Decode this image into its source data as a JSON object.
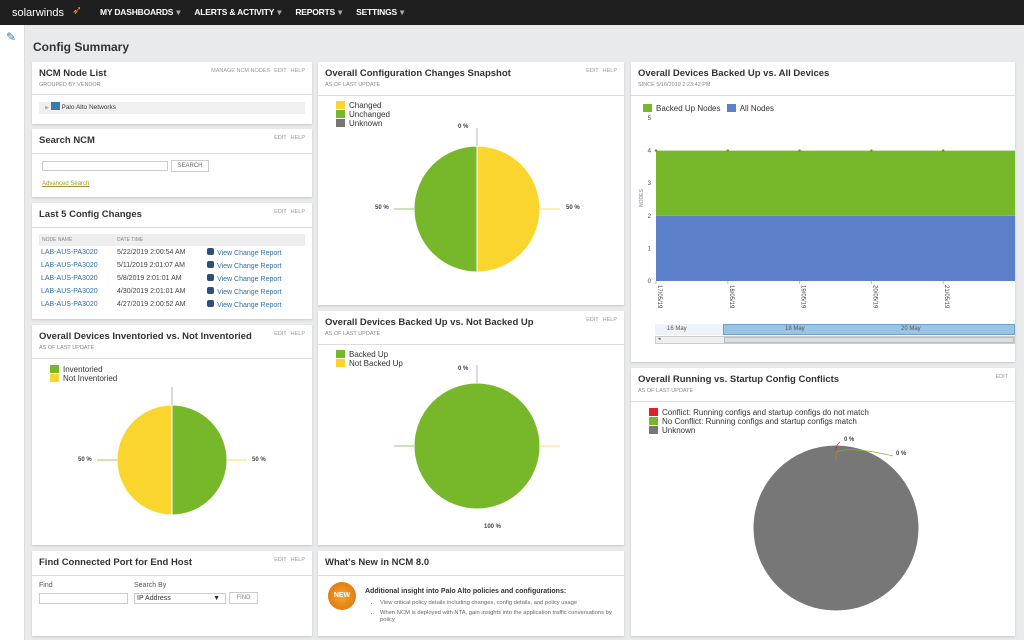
{
  "topbar": {
    "logo": "solarwinds",
    "menu": [
      {
        "label": "MY DASHBOARDS"
      },
      {
        "label": "ALERTS & ACTIVITY"
      },
      {
        "label": "REPORTS"
      },
      {
        "label": "SETTINGS"
      }
    ]
  },
  "page": {
    "title": "Config Summary"
  },
  "actions": {
    "edit": "EDIT",
    "help": "HELP",
    "manage": "MANAGE NCM NODES"
  },
  "node_list": {
    "title": "NCM Node List",
    "subtitle": "GROUPED BY VENDOR",
    "vendor": "Palo Alto Networks"
  },
  "search": {
    "title": "Search NCM",
    "button": "SEARCH",
    "value": "",
    "advanced": "Advanced Search"
  },
  "last5": {
    "title": "Last 5 Config Changes",
    "columns": [
      "NODE NAME",
      "DATE TIME"
    ],
    "rows": [
      {
        "node": "LAB-AUS-PA3020",
        "time": "5/22/2019 2:00:54 AM",
        "link": "View Change Report"
      },
      {
        "node": "LAB-AUS-PA3020",
        "time": "5/11/2019 2:01:07 AM",
        "link": "View Change Report"
      },
      {
        "node": "LAB-AUS-PA3020",
        "time": "5/8/2019 2:01:01 AM",
        "link": "View Change Report"
      },
      {
        "node": "LAB-AUS-PA3020",
        "time": "4/30/2019 2:01:01 AM",
        "link": "View Change Report"
      },
      {
        "node": "LAB-AUS-PA3020",
        "time": "4/27/2019 2:00:52 AM",
        "link": "View Change Report"
      }
    ]
  },
  "find_port": {
    "title": "Find Connected Port for End Host",
    "find_label": "Find",
    "find_value": "",
    "search_by_label": "Search By",
    "search_by_value": "IP Address",
    "button": "FIND"
  },
  "whats_new": {
    "title": "What's New in NCM 8.0",
    "badge": "NEW",
    "heading": "Additional insight into Palo Alto policies and configurations:",
    "bullets": [
      "View critical policy details including changes, config details, and policy usage",
      "When NCM is deployed with NTA, gain insights into the application traffic conversations by policy"
    ]
  },
  "colors": {
    "green": "#77b82a",
    "yellow": "#fad52e",
    "gray": "#777777",
    "red": "#e0202a",
    "blue": "#5b80c8"
  },
  "chart_data": [
    {
      "id": "config_changes",
      "type": "pie",
      "title": "Overall Configuration Changes Snapshot",
      "subtitle": "AS OF LAST UPDATE",
      "series": [
        {
          "name": "Changed",
          "value": 50,
          "label": "50 %",
          "color": "#fad52e"
        },
        {
          "name": "Unchanged",
          "value": 50,
          "label": "50 %",
          "color": "#77b82a"
        },
        {
          "name": "Unknown",
          "value": 0,
          "label": "0 %",
          "color": "#777777"
        }
      ]
    },
    {
      "id": "inventoried",
      "type": "pie",
      "title": "Overall Devices Inventoried vs. Not Inventoried",
      "subtitle": "AS OF LAST UPDATE",
      "series": [
        {
          "name": "Inventoried",
          "value": 50,
          "label": "50 %",
          "color": "#77b82a"
        },
        {
          "name": "Not Inventoried",
          "value": 50,
          "label": "50 %",
          "color": "#fad52e"
        }
      ]
    },
    {
      "id": "backed_up",
      "type": "pie",
      "title": "Overall Devices Backed Up vs. Not Backed Up",
      "subtitle": "AS OF LAST UPDATE",
      "series": [
        {
          "name": "Backed Up",
          "value": 100,
          "label": "100 %",
          "color": "#77b82a"
        },
        {
          "name": "Not Backed Up",
          "value": 0,
          "label": "0 %",
          "color": "#fad52e"
        }
      ]
    },
    {
      "id": "conflicts",
      "type": "pie",
      "title": "Overall Running vs. Startup Config Conflicts",
      "subtitle": "AS OF LAST UPDATE",
      "series": [
        {
          "name": "Conflict: Running configs and startup configs do not match",
          "value": 0,
          "label": "0 %",
          "color": "#e0202a"
        },
        {
          "name": "No Conflict: Running configs and startup configs match",
          "value": 0,
          "label": "0 %",
          "color": "#77b82a"
        },
        {
          "name": "Unknown",
          "value": 100,
          "label": "",
          "color": "#777777"
        }
      ]
    },
    {
      "id": "backed_vs_all",
      "type": "area",
      "stacked": true,
      "title": "Overall Devices Backed Up vs. All Devices",
      "subtitle": "SINCE 5/16/2019 2:23:42 PM",
      "ylabel": "NODES",
      "ylim": [
        0,
        5
      ],
      "yticks": [
        0,
        1,
        2,
        3,
        4,
        5
      ],
      "x": [
        "17/05/19",
        "18/05/19",
        "19/05/19",
        "20/05/19",
        "21/05/19"
      ],
      "series": [
        {
          "name": "Backed Up Nodes",
          "values": [
            2,
            2,
            2,
            2,
            2
          ],
          "color": "#77b82a"
        },
        {
          "name": "All Nodes",
          "values": [
            2,
            2,
            2,
            2,
            2
          ],
          "color": "#5b80c8"
        }
      ],
      "navigator": [
        "16 May",
        "18 May",
        "20 May"
      ],
      "legend": "top-left"
    }
  ]
}
